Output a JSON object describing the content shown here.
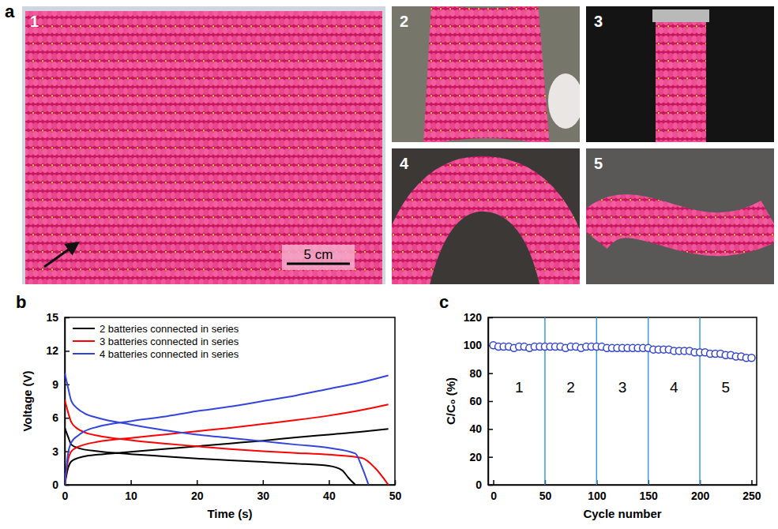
{
  "photo_panel": {
    "label": "a",
    "photos": [
      {
        "label": "1",
        "scale_bar": "5 cm"
      },
      {
        "label": "2"
      },
      {
        "label": "3"
      },
      {
        "label": "4"
      },
      {
        "label": "5"
      }
    ]
  },
  "chart_data": [
    {
      "panel_label": "b",
      "type": "line",
      "x_label": "Time (s)",
      "y_label": "Voltage (V)",
      "xlim": [
        0,
        50
      ],
      "xticks": [
        0,
        10,
        20,
        30,
        40,
        50
      ],
      "ylim": [
        0,
        15
      ],
      "yticks": [
        0,
        3,
        6,
        9,
        12,
        15
      ],
      "legend": "upper left",
      "series": [
        {
          "name": "2 batteries connected in series",
          "color": "#000000",
          "x": [
            0,
            0.5,
            1,
            2,
            3,
            5,
            10,
            15,
            20,
            25,
            30,
            35,
            40,
            45,
            49,
            null,
            0,
            0.5,
            1,
            2,
            5,
            10,
            15,
            20,
            25,
            30,
            35,
            40,
            42,
            43,
            44
          ],
          "values": [
            0,
            1.5,
            2.1,
            2.4,
            2.55,
            2.7,
            2.95,
            3.2,
            3.45,
            3.7,
            3.95,
            4.25,
            4.5,
            4.75,
            5,
            null,
            5.1,
            4.3,
            3.6,
            3.3,
            3,
            2.75,
            2.55,
            2.35,
            2.2,
            2.05,
            1.9,
            1.7,
            1.3,
            0.6,
            0
          ]
        },
        {
          "name": "3 batteries connected in series",
          "color": "#ff0000",
          "x": [
            0,
            0.5,
            1,
            2,
            3,
            5,
            10,
            15,
            20,
            25,
            30,
            35,
            40,
            45,
            49,
            null,
            0,
            0.5,
            1,
            2,
            3,
            5,
            10,
            15,
            20,
            25,
            30,
            35,
            40,
            45,
            47,
            49
          ],
          "values": [
            0,
            2.2,
            3,
            3.4,
            3.6,
            3.85,
            4.2,
            4.5,
            4.8,
            5.1,
            5.45,
            5.8,
            6.2,
            6.7,
            7.2,
            null,
            7.6,
            6.5,
            5.6,
            5,
            4.7,
            4.4,
            4,
            3.7,
            3.45,
            3.2,
            3,
            2.85,
            2.7,
            2.4,
            1.5,
            0
          ]
        },
        {
          "name": "4 batteries connected in series",
          "color": "#3344dd",
          "x": [
            0,
            0.5,
            1,
            2,
            3,
            5,
            10,
            15,
            20,
            25,
            30,
            35,
            40,
            45,
            49,
            null,
            0,
            0.5,
            1,
            2,
            3,
            5,
            10,
            15,
            20,
            25,
            30,
            35,
            40,
            44,
            45,
            46
          ],
          "values": [
            0,
            2.8,
            3.8,
            4.4,
            4.8,
            5.2,
            5.7,
            6.1,
            6.6,
            7,
            7.5,
            8,
            8.6,
            9.2,
            9.8,
            null,
            10,
            8.7,
            7.5,
            6.8,
            6.4,
            6,
            5.4,
            4.9,
            4.5,
            4.2,
            3.9,
            3.6,
            3.3,
            2.8,
            1.6,
            0
          ]
        }
      ]
    },
    {
      "panel_label": "c",
      "type": "scatter",
      "x_label": "Cycle number",
      "y_label": "C/C₀ (%)",
      "xlim": [
        -5,
        255
      ],
      "xticks": [
        0,
        50,
        100,
        150,
        200,
        250
      ],
      "ylim": [
        0,
        120
      ],
      "yticks": [
        0,
        20,
        40,
        60,
        80,
        100,
        120
      ],
      "marker": "open_circle",
      "color": "#3344cc",
      "x": [
        0,
        5,
        10,
        15,
        20,
        25,
        30,
        35,
        40,
        45,
        50,
        55,
        60,
        65,
        70,
        75,
        80,
        85,
        90,
        95,
        100,
        105,
        110,
        115,
        120,
        125,
        130,
        135,
        140,
        145,
        150,
        155,
        160,
        165,
        170,
        175,
        180,
        185,
        190,
        195,
        200,
        205,
        210,
        215,
        220,
        225,
        230,
        235,
        240,
        245,
        250
      ],
      "values": [
        100,
        99,
        99,
        99,
        98,
        99,
        99,
        98,
        99,
        99,
        99,
        99,
        99,
        99,
        98,
        99,
        99,
        98,
        99,
        99,
        99,
        99,
        98,
        98,
        98,
        98,
        98,
        98,
        98,
        98,
        98,
        97,
        97,
        97,
        97,
        96,
        96,
        96,
        96,
        95,
        95,
        95,
        94,
        94,
        94,
        93,
        93,
        92,
        92,
        91,
        91
      ],
      "vlines": [
        50,
        100,
        150,
        200
      ],
      "regions": [
        {
          "label": "1",
          "x": 25,
          "y": 70
        },
        {
          "label": "2",
          "x": 75,
          "y": 70
        },
        {
          "label": "3",
          "x": 125,
          "y": 70
        },
        {
          "label": "4",
          "x": 175,
          "y": 70
        },
        {
          "label": "5",
          "x": 225,
          "y": 70
        }
      ]
    }
  ]
}
